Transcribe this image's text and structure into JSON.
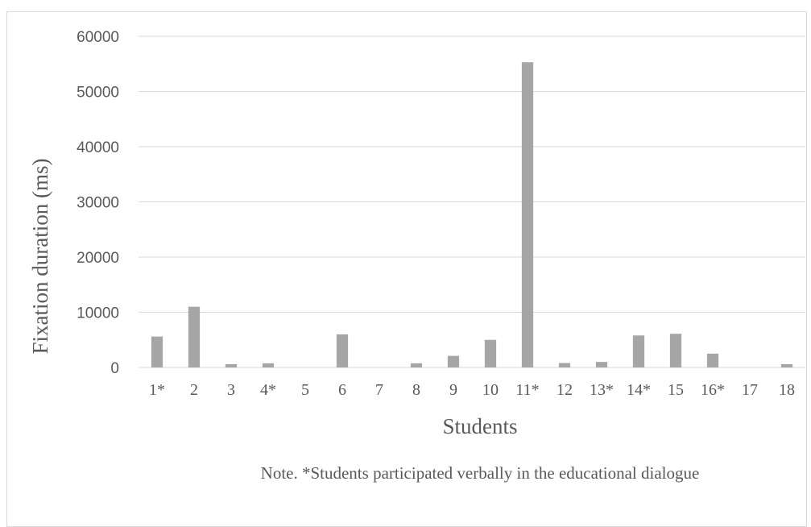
{
  "chart_data": {
    "type": "bar",
    "categories": [
      "1*",
      "2",
      "3",
      "4*",
      "5",
      "6",
      "7",
      "8",
      "9",
      "10",
      "11*",
      "12",
      "13*",
      "14*",
      "15",
      "16*",
      "17",
      "18"
    ],
    "values": [
      5600,
      11000,
      600,
      750,
      0,
      6000,
      0,
      750,
      2100,
      5000,
      55300,
      800,
      1000,
      5800,
      6100,
      2500,
      0,
      600
    ],
    "xlabel": "Students",
    "ylabel": "Fixation duration (ms)",
    "ylim": [
      0,
      60000
    ],
    "yticks": [
      0,
      10000,
      20000,
      30000,
      40000,
      50000,
      60000
    ],
    "grid": true,
    "bar_color": "#a6a6a6",
    "grid_color": "#d9d9d9",
    "note": "Note. *Students participated verbally in the educational dialogue"
  }
}
